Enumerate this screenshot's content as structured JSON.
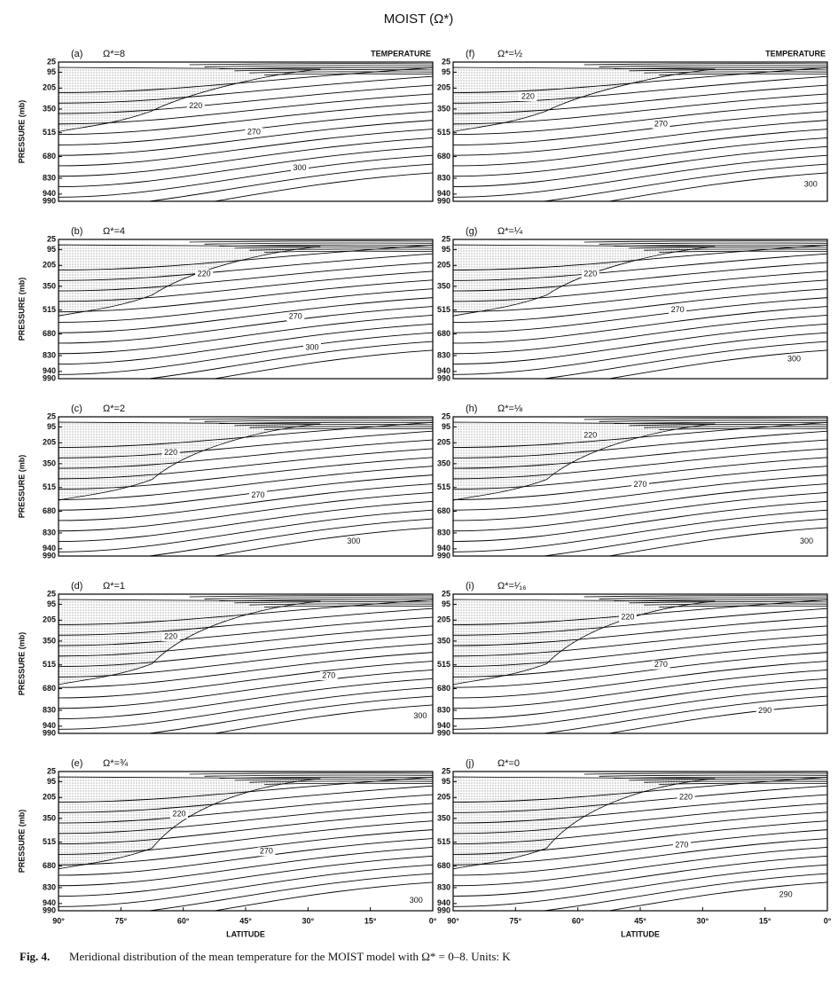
{
  "title": "MOIST (Ω*)",
  "caption": {
    "label": "Fig. 4.",
    "text": "Meridional distribution of the mean temperature for the MOIST model with Ω* = 0–8. Units: K"
  },
  "chart_data": [
    {
      "type": "contour",
      "label": "(a)",
      "parameter": "Ω*=8",
      "header": "TEMPERATURE",
      "ylabel": "PRESSURE (mb)",
      "ylim": [
        25,
        990
      ],
      "yticks": [
        25,
        95,
        205,
        350,
        515,
        680,
        830,
        940,
        990
      ],
      "xlim": [
        90,
        0
      ],
      "contour_labels": [
        {
          "value": 220,
          "latitude": 57,
          "pressure": 330
        },
        {
          "value": 270,
          "latitude": 43,
          "pressure": 510
        },
        {
          "value": 300,
          "latitude": 32,
          "pressure": 760
        }
      ]
    },
    {
      "type": "contour",
      "label": "(b)",
      "parameter": "Ω*=4",
      "ylabel": "PRESSURE (mb)",
      "ylim": [
        25,
        990
      ],
      "yticks": [
        25,
        95,
        205,
        350,
        515,
        680,
        830,
        940,
        990
      ],
      "xlim": [
        90,
        0
      ],
      "contour_labels": [
        {
          "value": 220,
          "latitude": 55,
          "pressure": 265
        },
        {
          "value": 270,
          "latitude": 33,
          "pressure": 560
        },
        {
          "value": 300,
          "latitude": 29,
          "pressure": 775
        }
      ]
    },
    {
      "type": "contour",
      "label": "(c)",
      "parameter": "Ω*=2",
      "ylabel": "PRESSURE (mb)",
      "ylim": [
        25,
        990
      ],
      "yticks": [
        25,
        95,
        205,
        350,
        515,
        680,
        830,
        940,
        990
      ],
      "xlim": [
        90,
        0
      ],
      "contour_labels": [
        {
          "value": 220,
          "latitude": 63,
          "pressure": 275
        },
        {
          "value": 270,
          "latitude": 42,
          "pressure": 570
        },
        {
          "value": 300,
          "latitude": 19,
          "pressure": 890
        }
      ]
    },
    {
      "type": "contour",
      "label": "(d)",
      "parameter": "Ω*=1",
      "ylabel": "PRESSURE (mb)",
      "ylim": [
        25,
        990
      ],
      "yticks": [
        25,
        95,
        205,
        350,
        515,
        680,
        830,
        940,
        990
      ],
      "xlim": [
        90,
        0
      ],
      "contour_labels": [
        {
          "value": 220,
          "latitude": 63,
          "pressure": 320
        },
        {
          "value": 270,
          "latitude": 25,
          "pressure": 590
        },
        {
          "value": 300,
          "latitude": 3,
          "pressure": 870
        }
      ]
    },
    {
      "type": "contour",
      "label": "(e)",
      "parameter": "Ω*=¾",
      "ylabel": "PRESSURE (mb)",
      "xlabel": "LATITUDE",
      "ylim": [
        25,
        990
      ],
      "yticks": [
        25,
        95,
        205,
        350,
        515,
        680,
        830,
        940,
        990
      ],
      "xlim": [
        90,
        0
      ],
      "xticks": [
        {
          "value": 90,
          "label": "90°"
        },
        {
          "value": 75,
          "label": "75°"
        },
        {
          "value": 60,
          "label": "60°"
        },
        {
          "value": 45,
          "label": "45°"
        },
        {
          "value": 30,
          "label": "30°"
        },
        {
          "value": 15,
          "label": "15°"
        },
        {
          "value": 0,
          "label": "0°"
        }
      ],
      "contour_labels": [
        {
          "value": 220,
          "latitude": 61,
          "pressure": 320
        },
        {
          "value": 270,
          "latitude": 40,
          "pressure": 580
        },
        {
          "value": 300,
          "latitude": 4,
          "pressure": 920
        }
      ]
    },
    {
      "type": "contour",
      "label": "(f)",
      "parameter": "Ω*=½",
      "header": "TEMPERATURE",
      "ylim": [
        25,
        990
      ],
      "yticks": [
        25,
        95,
        205,
        350,
        515,
        680,
        830,
        940,
        990
      ],
      "xlim": [
        90,
        0
      ],
      "contour_labels": [
        {
          "value": 220,
          "latitude": 72,
          "pressure": 265
        },
        {
          "value": 270,
          "latitude": 40,
          "pressure": 455
        },
        {
          "value": 300,
          "latitude": 4,
          "pressure": 875
        }
      ]
    },
    {
      "type": "contour",
      "label": "(g)",
      "parameter": "Ω*=¼",
      "ylim": [
        25,
        990
      ],
      "yticks": [
        25,
        95,
        205,
        350,
        515,
        680,
        830,
        940,
        990
      ],
      "xlim": [
        90,
        0
      ],
      "contour_labels": [
        {
          "value": 220,
          "latitude": 57,
          "pressure": 265
        },
        {
          "value": 270,
          "latitude": 36,
          "pressure": 515
        },
        {
          "value": 300,
          "latitude": 8,
          "pressure": 855
        }
      ]
    },
    {
      "type": "contour",
      "label": "(h)",
      "parameter": "Ω*=⅛",
      "ylim": [
        25,
        990
      ],
      "yticks": [
        25,
        95,
        205,
        350,
        515,
        680,
        830,
        940,
        990
      ],
      "xlim": [
        90,
        0
      ],
      "contour_labels": [
        {
          "value": 220,
          "latitude": 57,
          "pressure": 155
        },
        {
          "value": 270,
          "latitude": 45,
          "pressure": 495
        },
        {
          "value": 300,
          "latitude": 5,
          "pressure": 890
        }
      ]
    },
    {
      "type": "contour",
      "label": "(i)",
      "parameter": "Ω*=¹⁄₁₆",
      "ylim": [
        25,
        990
      ],
      "yticks": [
        25,
        95,
        205,
        350,
        515,
        680,
        830,
        940,
        990
      ],
      "xlim": [
        90,
        0
      ],
      "contour_labels": [
        {
          "value": 220,
          "latitude": 48,
          "pressure": 185
        },
        {
          "value": 270,
          "latitude": 40,
          "pressure": 515
        },
        {
          "value": 290,
          "latitude": 15,
          "pressure": 835
        }
      ]
    },
    {
      "type": "contour",
      "label": "(j)",
      "parameter": "Ω*=0",
      "xlabel": "LATITUDE",
      "ylim": [
        25,
        990
      ],
      "yticks": [
        25,
        95,
        205,
        350,
        515,
        680,
        830,
        940,
        990
      ],
      "xlim": [
        90,
        0
      ],
      "xticks": [
        {
          "value": 90,
          "label": "90°"
        },
        {
          "value": 75,
          "label": "75°"
        },
        {
          "value": 60,
          "label": "60°"
        },
        {
          "value": 45,
          "label": "45°"
        },
        {
          "value": 30,
          "label": "30°"
        },
        {
          "value": 15,
          "label": "15°"
        },
        {
          "value": 0,
          "label": "0°"
        }
      ],
      "contour_labels": [
        {
          "value": 220,
          "latitude": 34,
          "pressure": 205
        },
        {
          "value": 270,
          "latitude": 35,
          "pressure": 535
        },
        {
          "value": 290,
          "latitude": 10,
          "pressure": 880
        }
      ]
    }
  ]
}
